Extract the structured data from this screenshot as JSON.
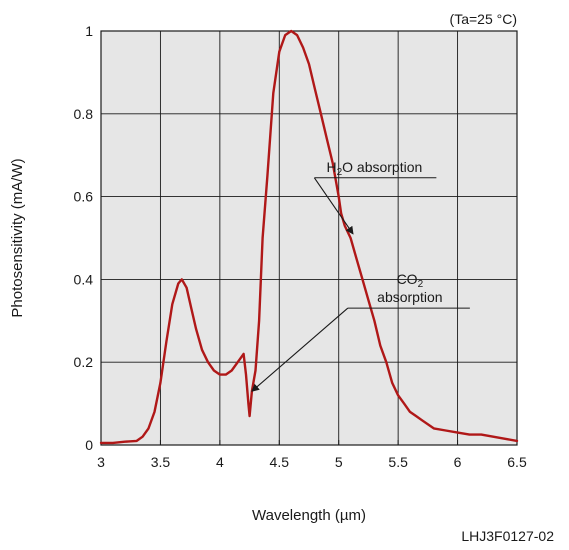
{
  "chart_data": {
    "type": "line",
    "title": "",
    "condition_label": "(Ta=25 °C)",
    "xlabel": "Wavelength (µm)",
    "ylabel": "Photosensitivity (mA/W)",
    "xlim": [
      3,
      6.5
    ],
    "ylim": [
      0,
      1
    ],
    "x_ticks": [
      3,
      3.5,
      4,
      4.5,
      5,
      5.5,
      6,
      6.5
    ],
    "x_tick_labels": [
      "3",
      "3.5",
      "4",
      "4.5",
      "5",
      "5.5",
      "6",
      "6.5"
    ],
    "y_ticks": [
      0,
      0.2,
      0.4,
      0.6,
      0.8,
      1
    ],
    "y_tick_labels": [
      "0",
      "0.2",
      "0.4",
      "0.6",
      "0.8",
      "1"
    ],
    "grid": true,
    "figure_code": "LHJ3F0127-02",
    "series": [
      {
        "color": "#b01818",
        "x": [
          3.0,
          3.1,
          3.2,
          3.3,
          3.35,
          3.4,
          3.45,
          3.5,
          3.55,
          3.6,
          3.65,
          3.68,
          3.72,
          3.76,
          3.8,
          3.85,
          3.9,
          3.95,
          4.0,
          4.05,
          4.1,
          4.15,
          4.2,
          4.22,
          4.24,
          4.25,
          4.27,
          4.3,
          4.33,
          4.36,
          4.4,
          4.45,
          4.5,
          4.55,
          4.6,
          4.65,
          4.7,
          4.75,
          4.8,
          4.85,
          4.9,
          4.95,
          5.0,
          5.02,
          5.05,
          5.1,
          5.15,
          5.2,
          5.25,
          5.3,
          5.35,
          5.4,
          5.45,
          5.5,
          5.55,
          5.6,
          5.65,
          5.7,
          5.8,
          5.9,
          6.0,
          6.1,
          6.2,
          6.3,
          6.4,
          6.5
        ],
        "y": [
          0.005,
          0.005,
          0.008,
          0.01,
          0.02,
          0.04,
          0.08,
          0.15,
          0.25,
          0.34,
          0.39,
          0.4,
          0.38,
          0.33,
          0.28,
          0.23,
          0.2,
          0.18,
          0.17,
          0.17,
          0.18,
          0.2,
          0.22,
          0.17,
          0.1,
          0.07,
          0.13,
          0.18,
          0.3,
          0.5,
          0.65,
          0.85,
          0.95,
          0.99,
          1.0,
          0.99,
          0.96,
          0.92,
          0.86,
          0.8,
          0.74,
          0.68,
          0.6,
          0.56,
          0.53,
          0.5,
          0.45,
          0.4,
          0.35,
          0.3,
          0.24,
          0.2,
          0.15,
          0.12,
          0.1,
          0.08,
          0.07,
          0.06,
          0.04,
          0.035,
          0.03,
          0.025,
          0.025,
          0.02,
          0.015,
          0.01
        ]
      }
    ],
    "annotations": [
      {
        "text_main": "H",
        "text_sub": "2",
        "text_rest": "O absorption",
        "x": 5.3,
        "y": 0.66,
        "arrow_to": [
          5.12,
          0.51
        ]
      },
      {
        "text_main": "CO",
        "text_sub": "2",
        "text_rest": "",
        "line2": "absorption",
        "x": 5.75,
        "y": 0.35,
        "arrow_to": [
          4.27,
          0.13
        ]
      }
    ]
  }
}
